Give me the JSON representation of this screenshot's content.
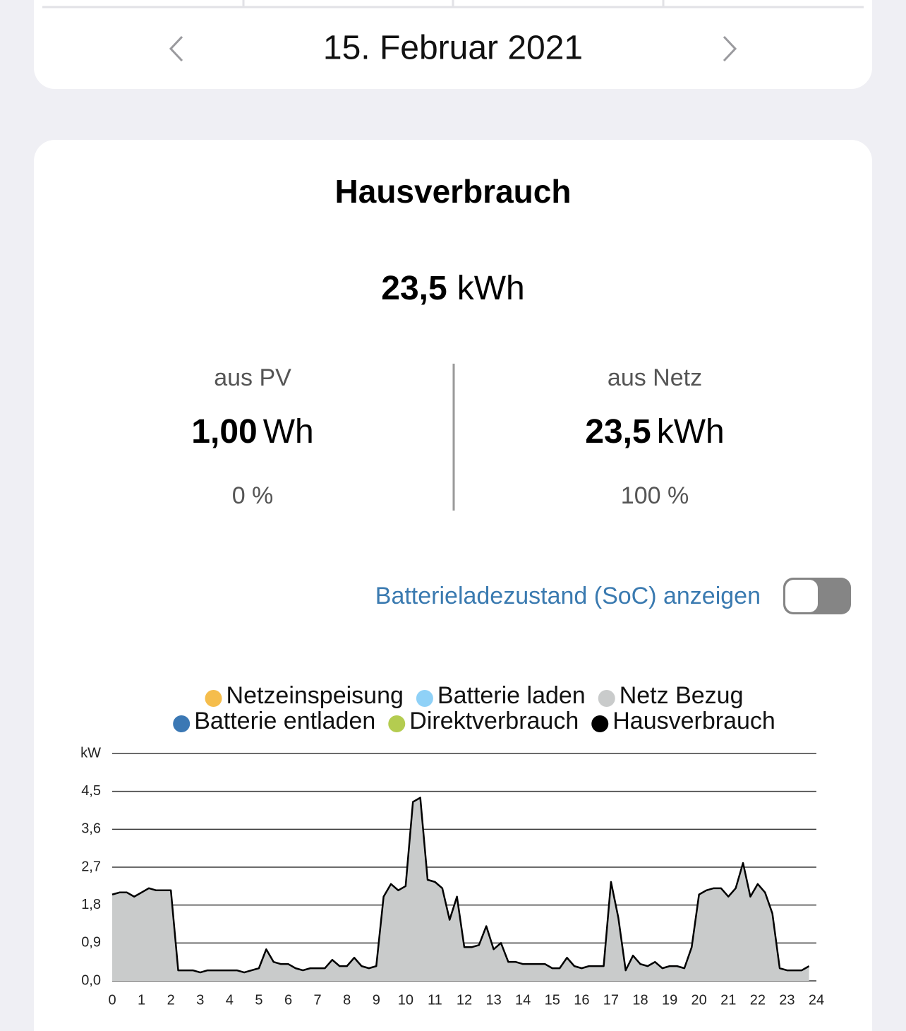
{
  "header": {
    "date": "15. Februar 2021"
  },
  "card": {
    "title": "Hausverbrauch",
    "total": {
      "value": "23,5",
      "unit": "kWh"
    },
    "pv": {
      "label": "aus PV",
      "value": "1,00",
      "unit": "Wh",
      "percent": "0 %"
    },
    "netz": {
      "label": "aus Netz",
      "value": "23,5",
      "unit": "kWh",
      "percent": "100 %"
    },
    "soc_toggle": "Batterieladezustand (SoC) anzeigen"
  },
  "chart_data": {
    "type": "area",
    "xlim": [
      0,
      24
    ],
    "xticks": [
      0,
      1,
      2,
      3,
      4,
      5,
      6,
      7,
      8,
      9,
      10,
      11,
      12,
      13,
      14,
      15,
      16,
      17,
      18,
      19,
      20,
      21,
      22,
      23,
      24
    ],
    "ylim": [
      0,
      5.4
    ],
    "yticks": [
      {
        "value": 0,
        "label": "0,0"
      },
      {
        "value": 0.9,
        "label": "0,9"
      },
      {
        "value": 1.8,
        "label": "1,8"
      },
      {
        "value": 2.7,
        "label": "2,7"
      },
      {
        "value": 3.6,
        "label": "3,6"
      },
      {
        "value": 4.5,
        "label": "4,5"
      },
      {
        "value": 5.4,
        "label": "kW"
      }
    ],
    "grid": true,
    "x": [
      0,
      0.25,
      0.5,
      0.75,
      1,
      1.25,
      1.5,
      1.75,
      2,
      2.25,
      2.5,
      2.75,
      3,
      3.25,
      3.5,
      3.75,
      4,
      4.25,
      4.5,
      4.75,
      5,
      5.25,
      5.5,
      5.75,
      6,
      6.25,
      6.5,
      6.75,
      7,
      7.25,
      7.5,
      7.75,
      8,
      8.25,
      8.5,
      8.75,
      9,
      9.25,
      9.5,
      9.75,
      10,
      10.25,
      10.5,
      10.75,
      11,
      11.25,
      11.5,
      11.75,
      12,
      12.25,
      12.5,
      12.75,
      13,
      13.25,
      13.5,
      13.75,
      14,
      14.25,
      14.5,
      14.75,
      15,
      15.25,
      15.5,
      15.75,
      16,
      16.25,
      16.5,
      16.75,
      17,
      17.25,
      17.5,
      17.75,
      18,
      18.25,
      18.5,
      18.75,
      19,
      19.25,
      19.5,
      19.75,
      20,
      20.25,
      20.5,
      20.75,
      21,
      21.25,
      21.5,
      21.75,
      22,
      22.25,
      22.5,
      22.75,
      23,
      23.25,
      23.5,
      23.75
    ],
    "series": [
      {
        "name": "Netzeinspeisung",
        "color": "#f5bd4c",
        "area": true,
        "values": [
          0,
          0,
          0,
          0,
          0,
          0,
          0,
          0,
          0,
          0,
          0,
          0,
          0,
          0,
          0,
          0,
          0,
          0,
          0,
          0,
          0,
          0,
          0,
          0,
          0,
          0,
          0,
          0,
          0,
          0,
          0,
          0,
          0,
          0,
          0,
          0,
          0,
          0,
          0,
          0,
          0,
          0,
          0,
          0,
          0,
          0,
          0,
          0,
          0,
          0,
          0,
          0,
          0,
          0,
          0,
          0,
          0,
          0,
          0,
          0,
          0,
          0,
          0,
          0,
          0,
          0,
          0,
          0,
          0,
          0,
          0,
          0,
          0,
          0,
          0,
          0,
          0,
          0,
          0,
          0,
          0,
          0,
          0,
          0,
          0,
          0,
          0,
          0,
          0,
          0,
          0,
          0,
          0,
          0,
          0,
          0
        ]
      },
      {
        "name": "Batterie laden",
        "color": "#8fd1f7",
        "area": true,
        "values": [
          0,
          0,
          0,
          0,
          0,
          0,
          0,
          0,
          0,
          0,
          0,
          0,
          0,
          0,
          0,
          0,
          0,
          0,
          0,
          0,
          0,
          0,
          0,
          0,
          0,
          0,
          0,
          0,
          0,
          0,
          0,
          0,
          0,
          0,
          0,
          0,
          0,
          0,
          0,
          0,
          0,
          0,
          0,
          0,
          0,
          0,
          0,
          0,
          0,
          0,
          0,
          0,
          0,
          0,
          0,
          0,
          0,
          0,
          0,
          0,
          0,
          0,
          0,
          0,
          0,
          0,
          0,
          0,
          0,
          0,
          0,
          0,
          0,
          0,
          0,
          0,
          0,
          0,
          0,
          0,
          0,
          0,
          0,
          0,
          0,
          0,
          0,
          0,
          0,
          0,
          0,
          0,
          0,
          0,
          0,
          0
        ]
      },
      {
        "name": "Netz Bezug",
        "color": "#c9cbcb",
        "area": true,
        "values": [
          2.05,
          2.1,
          2.1,
          2.0,
          2.1,
          2.2,
          2.15,
          2.15,
          2.15,
          0.25,
          0.25,
          0.25,
          0.2,
          0.25,
          0.25,
          0.25,
          0.25,
          0.25,
          0.2,
          0.25,
          0.3,
          0.75,
          0.45,
          0.4,
          0.4,
          0.3,
          0.25,
          0.3,
          0.3,
          0.3,
          0.5,
          0.35,
          0.35,
          0.55,
          0.35,
          0.3,
          0.35,
          2.0,
          2.3,
          2.15,
          2.25,
          4.25,
          4.35,
          2.4,
          2.35,
          2.2,
          1.45,
          2.0,
          0.8,
          0.8,
          0.85,
          1.3,
          0.75,
          0.9,
          0.45,
          0.45,
          0.4,
          0.4,
          0.4,
          0.4,
          0.3,
          0.3,
          0.55,
          0.35,
          0.3,
          0.35,
          0.35,
          0.35,
          2.35,
          1.5,
          0.25,
          0.6,
          0.4,
          0.35,
          0.45,
          0.3,
          0.35,
          0.35,
          0.3,
          0.8,
          2.05,
          2.15,
          2.2,
          2.2,
          2.0,
          2.2,
          2.8,
          2.0,
          2.3,
          2.1,
          1.6,
          0.3,
          0.25,
          0.25,
          0.25,
          0.35
        ]
      },
      {
        "name": "Batterie entladen",
        "color": "#3b78b4",
        "area": true,
        "values": [
          0,
          0,
          0,
          0,
          0,
          0,
          0,
          0,
          0,
          0,
          0,
          0,
          0,
          0,
          0,
          0,
          0,
          0,
          0,
          0,
          0,
          0,
          0,
          0,
          0,
          0,
          0,
          0,
          0,
          0,
          0,
          0,
          0,
          0,
          0,
          0,
          0,
          0,
          0,
          0,
          0,
          0,
          0,
          0,
          0,
          0,
          0,
          0,
          0,
          0,
          0,
          0,
          0,
          0,
          0,
          0,
          0,
          0,
          0,
          0,
          0,
          0,
          0,
          0,
          0,
          0,
          0,
          0,
          0,
          0,
          0,
          0,
          0,
          0,
          0,
          0,
          0,
          0,
          0,
          0,
          0,
          0,
          0,
          0,
          0,
          0,
          0,
          0,
          0,
          0,
          0,
          0,
          0,
          0,
          0,
          0
        ]
      },
      {
        "name": "Direktverbrauch",
        "color": "#b4cc50",
        "area": true,
        "values": [
          0,
          0,
          0,
          0,
          0,
          0,
          0,
          0,
          0,
          0,
          0,
          0,
          0,
          0,
          0,
          0,
          0,
          0,
          0,
          0,
          0,
          0,
          0,
          0,
          0,
          0,
          0,
          0,
          0,
          0,
          0,
          0,
          0,
          0,
          0,
          0,
          0,
          0,
          0,
          0,
          0,
          0,
          0,
          0,
          0,
          0,
          0,
          0,
          0,
          0,
          0,
          0,
          0,
          0,
          0,
          0,
          0,
          0,
          0,
          0,
          0,
          0,
          0,
          0,
          0,
          0,
          0,
          0,
          0,
          0,
          0,
          0,
          0,
          0,
          0,
          0,
          0,
          0,
          0,
          0,
          0,
          0,
          0,
          0,
          0,
          0,
          0,
          0,
          0,
          0,
          0,
          0,
          0,
          0,
          0,
          0
        ]
      },
      {
        "name": "Hausverbrauch",
        "color": "#000000",
        "area": false,
        "values": [
          2.05,
          2.1,
          2.1,
          2.0,
          2.1,
          2.2,
          2.15,
          2.15,
          2.15,
          0.25,
          0.25,
          0.25,
          0.2,
          0.25,
          0.25,
          0.25,
          0.25,
          0.25,
          0.2,
          0.25,
          0.3,
          0.75,
          0.45,
          0.4,
          0.4,
          0.3,
          0.25,
          0.3,
          0.3,
          0.3,
          0.5,
          0.35,
          0.35,
          0.55,
          0.35,
          0.3,
          0.35,
          2.0,
          2.3,
          2.15,
          2.25,
          4.25,
          4.35,
          2.4,
          2.35,
          2.2,
          1.45,
          2.0,
          0.8,
          0.8,
          0.85,
          1.3,
          0.75,
          0.9,
          0.45,
          0.45,
          0.4,
          0.4,
          0.4,
          0.4,
          0.3,
          0.3,
          0.55,
          0.35,
          0.3,
          0.35,
          0.35,
          0.35,
          2.35,
          1.5,
          0.25,
          0.6,
          0.4,
          0.35,
          0.45,
          0.3,
          0.35,
          0.35,
          0.3,
          0.8,
          2.05,
          2.15,
          2.2,
          2.2,
          2.0,
          2.2,
          2.8,
          2.0,
          2.3,
          2.1,
          1.6,
          0.3,
          0.25,
          0.25,
          0.25,
          0.35
        ]
      }
    ]
  }
}
